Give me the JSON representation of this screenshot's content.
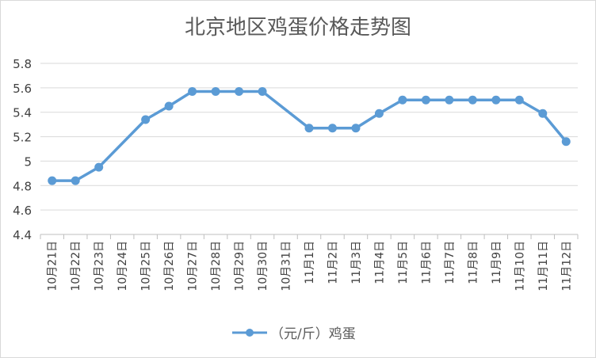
{
  "chart_data": {
    "type": "line",
    "title": "北京地区鸡蛋价格走势图",
    "categories": [
      "10月21日",
      "10月22日",
      "10月23日",
      "10月24日",
      "10月25日",
      "10月26日",
      "10月27日",
      "10月28日",
      "10月29日",
      "10月30日",
      "10月31日",
      "11月1日",
      "11月2日",
      "11月3日",
      "11月4日",
      "11月5日",
      "11月6日",
      "11月7日",
      "11月8日",
      "11月9日",
      "11月10日",
      "11月11日",
      "11月12日"
    ],
    "series": [
      {
        "name": "（元/斤）鸡蛋",
        "values": [
          4.84,
          4.84,
          4.95,
          null,
          5.34,
          5.45,
          5.57,
          5.57,
          5.57,
          5.57,
          null,
          5.27,
          5.27,
          5.27,
          5.39,
          5.5,
          5.5,
          5.5,
          5.5,
          5.5,
          5.5,
          5.39,
          5.16
        ]
      }
    ],
    "ylim": [
      4.4,
      5.8
    ],
    "yticks": [
      "4.4",
      "4.6",
      "4.8",
      "5",
      "5.2",
      "5.4",
      "5.6",
      "5.8"
    ],
    "grid": true,
    "legend": "bottom",
    "colors": {
      "line": "#5B9BD5",
      "grid": "#d9d9d9",
      "axis": "#bfbfbf",
      "text": "#404040",
      "title": "#595959"
    }
  }
}
